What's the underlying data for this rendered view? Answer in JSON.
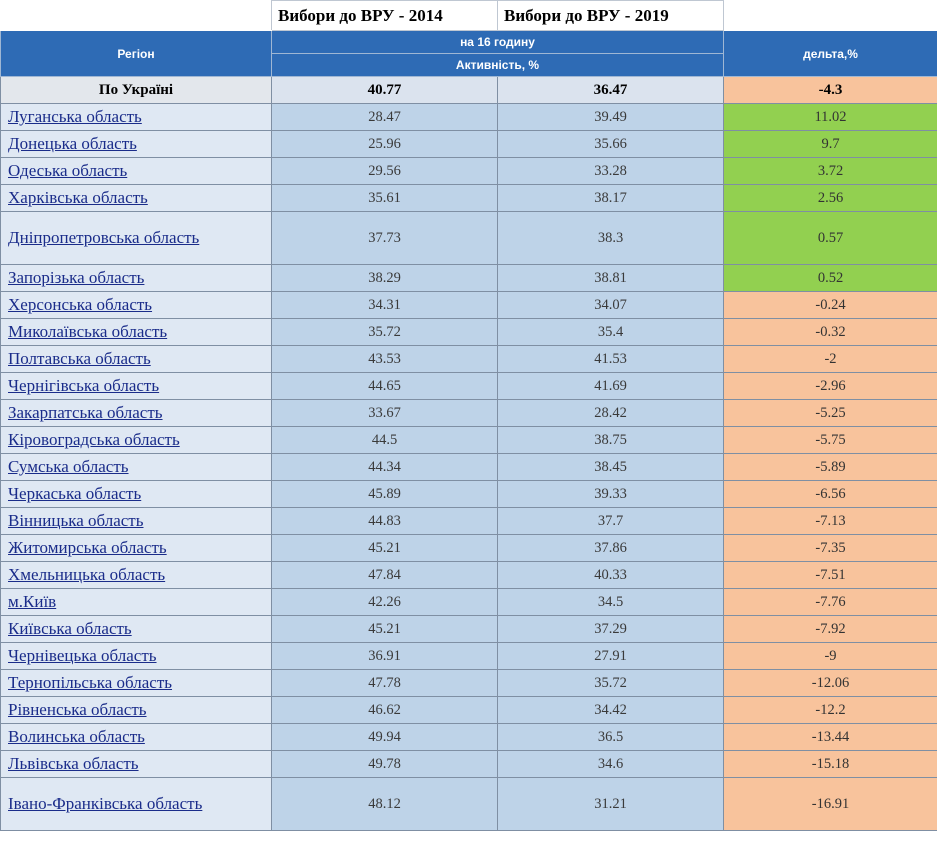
{
  "header": {
    "election_2014": "Вибори до ВРУ - 2014",
    "election_2019": "Вибори до ВРУ - 2019",
    "region": "Регіон",
    "time": "на 16 годину",
    "activity": "Активність, %",
    "delta": "дельта,%"
  },
  "total": {
    "name": "По Україні",
    "v2014": "40.77",
    "v2019": "36.47",
    "delta": "-4.3"
  },
  "rows": [
    {
      "name": "Луганська область",
      "v2014": "28.47",
      "v2019": "39.49",
      "delta": "11.02"
    },
    {
      "name": "Донецька область",
      "v2014": "25.96",
      "v2019": "35.66",
      "delta": "9.7"
    },
    {
      "name": "Одеська область",
      "v2014": "29.56",
      "v2019": "33.28",
      "delta": "3.72"
    },
    {
      "name": "Харківська область",
      "v2014": "35.61",
      "v2019": "38.17",
      "delta": "2.56"
    },
    {
      "name": "Дніпропетровська область",
      "v2014": "37.73",
      "v2019": "38.3",
      "delta": "0.57"
    },
    {
      "name": "Запорізька область",
      "v2014": "38.29",
      "v2019": "38.81",
      "delta": "0.52"
    },
    {
      "name": "Херсонська область",
      "v2014": "34.31",
      "v2019": "34.07",
      "delta": "-0.24"
    },
    {
      "name": "Миколаївська область",
      "v2014": "35.72",
      "v2019": "35.4",
      "delta": "-0.32"
    },
    {
      "name": "Полтавська область",
      "v2014": "43.53",
      "v2019": "41.53",
      "delta": "-2"
    },
    {
      "name": "Чернігівська область",
      "v2014": "44.65",
      "v2019": "41.69",
      "delta": "-2.96"
    },
    {
      "name": "Закарпатська область",
      "v2014": "33.67",
      "v2019": "28.42",
      "delta": "-5.25"
    },
    {
      "name": "Кіровоградська область",
      "v2014": "44.5",
      "v2019": "38.75",
      "delta": "-5.75"
    },
    {
      "name": "Сумська область",
      "v2014": "44.34",
      "v2019": "38.45",
      "delta": "-5.89"
    },
    {
      "name": "Черкаська область",
      "v2014": "45.89",
      "v2019": "39.33",
      "delta": "-6.56"
    },
    {
      "name": "Вінницька область",
      "v2014": "44.83",
      "v2019": "37.7",
      "delta": "-7.13"
    },
    {
      "name": "Житомирська область",
      "v2014": "45.21",
      "v2019": "37.86",
      "delta": "-7.35"
    },
    {
      "name": "Хмельницька область",
      "v2014": "47.84",
      "v2019": "40.33",
      "delta": "-7.51"
    },
    {
      "name": "м.Київ",
      "v2014": "42.26",
      "v2019": "34.5",
      "delta": "-7.76"
    },
    {
      "name": "Київська область",
      "v2014": "45.21",
      "v2019": "37.29",
      "delta": "-7.92"
    },
    {
      "name": "Чернівецька область",
      "v2014": "36.91",
      "v2019": "27.91",
      "delta": "-9"
    },
    {
      "name": "Тернопільська область",
      "v2014": "47.78",
      "v2019": "35.72",
      "delta": "-12.06"
    },
    {
      "name": "Рівненська область",
      "v2014": "46.62",
      "v2019": "34.42",
      "delta": "-12.2"
    },
    {
      "name": "Волинська область",
      "v2014": "49.94",
      "v2019": "36.5",
      "delta": "-13.44"
    },
    {
      "name": "Львівська область",
      "v2014": "49.78",
      "v2019": "34.6",
      "delta": "-15.18"
    },
    {
      "name": "Івано-Франківська область",
      "v2014": "48.12",
      "v2019": "31.21",
      "delta": "-16.91"
    }
  ],
  "colors": {
    "header": "#2e6bb5",
    "positive": "#92d050",
    "negative": "#f8c39c",
    "value_cell": "#bed3e8"
  }
}
